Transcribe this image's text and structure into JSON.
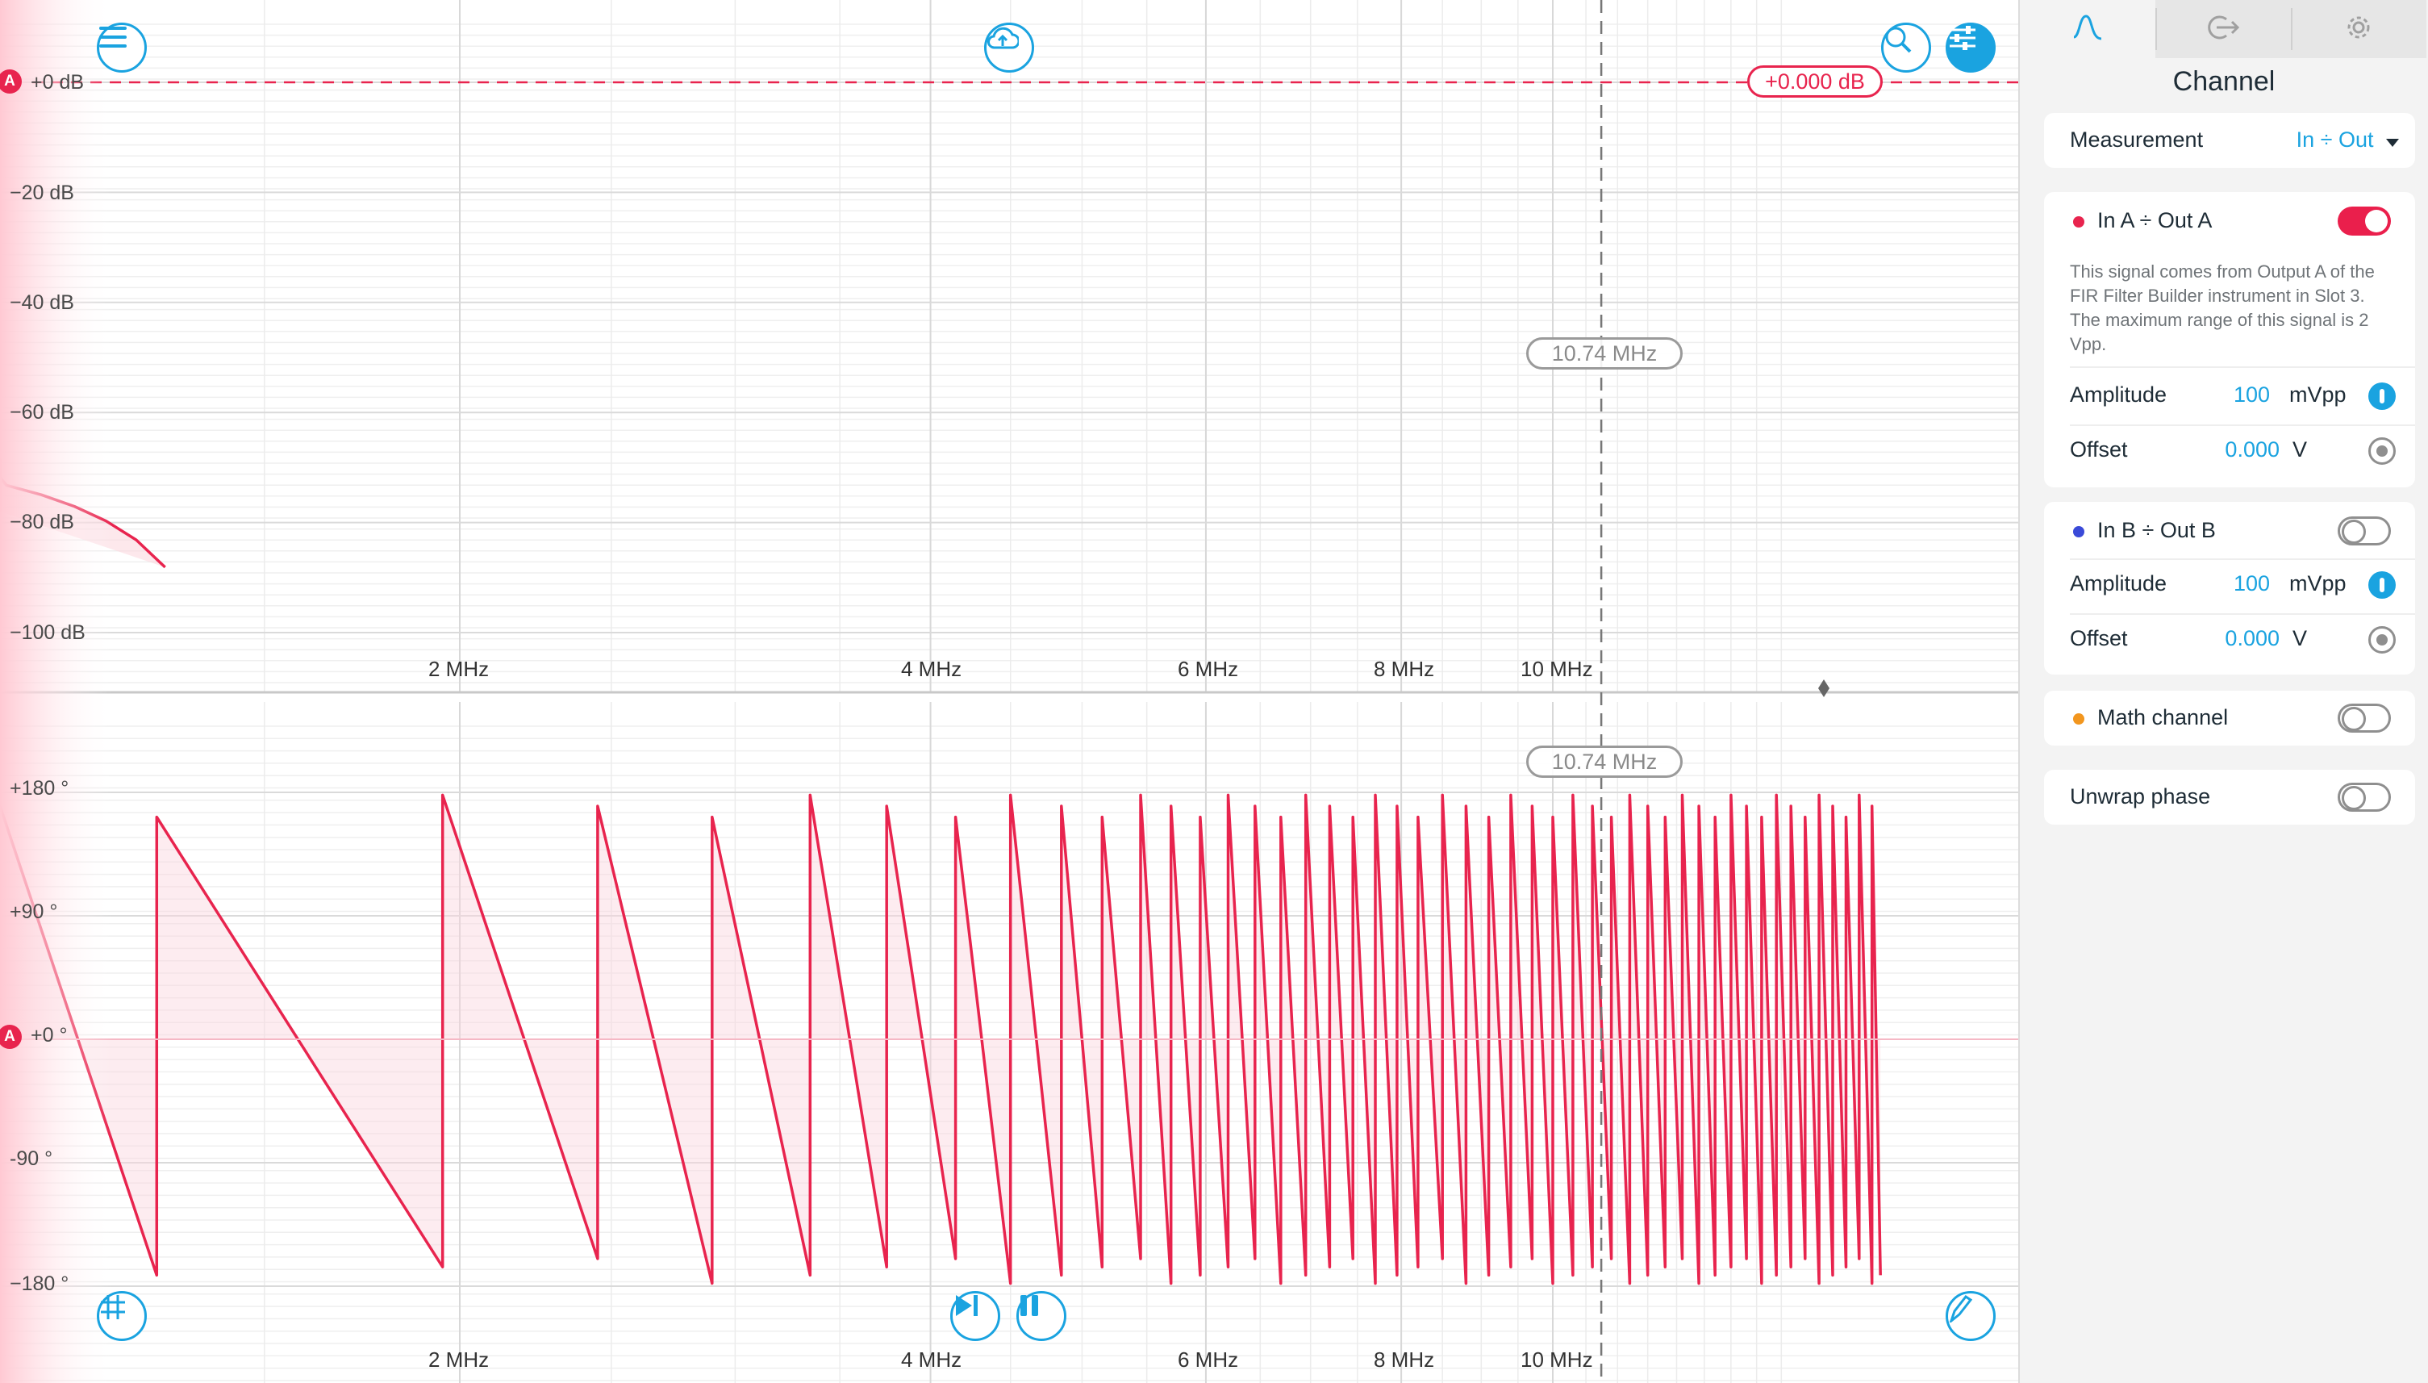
{
  "plot": {
    "mag_axis": {
      "labels": [
        "+0 dB",
        "−20 dB",
        "−40 dB",
        "−60 dB",
        "−80 dB",
        "−100 dB"
      ],
      "values_db": [
        0,
        -20,
        -40,
        -60,
        -80,
        -100
      ]
    },
    "phase_axis": {
      "labels": [
        "+180 °",
        "+90 °",
        "+0 °",
        "-90 °",
        "−180 °"
      ],
      "values_deg": [
        180,
        90,
        0,
        -90,
        -180
      ]
    },
    "freq_labels": [
      "2 MHz",
      "4 MHz",
      "6 MHz",
      "8 MHz",
      "10 MHz"
    ],
    "freq_values_mhz": [
      2,
      4,
      6,
      8,
      10
    ],
    "cursor": {
      "frequency_label": "10.74 MHz",
      "frequency_mhz": 10.74,
      "gain_readout": "+0.000 dB"
    },
    "channel_marker": "A",
    "trace_color": "#e8244e",
    "accent_color": "#1aa3e0"
  },
  "toolbar": {
    "menu_icon": "hamburger-menu-icon",
    "cloud_icon": "cloud-upload-icon",
    "zoom_icon": "zoom-icon",
    "settings_icon": "sliders-icon",
    "grid_icon": "grid-icon",
    "step_icon": "step-forward-icon",
    "pause_icon": "pause-icon",
    "probe_icon": "probe-icon"
  },
  "panel": {
    "tabs": [
      "waveform-tab-icon",
      "output-tab-icon",
      "gear-tab-icon"
    ],
    "title": "Channel",
    "measurement": {
      "label": "Measurement",
      "value": "In ÷ Out"
    },
    "channel_a": {
      "name": "In A ÷ Out A",
      "enabled": true,
      "dot_color": "#e8244e",
      "description": "This signal comes from Output A of the FIR Filter Builder instrument in Slot 3. The maximum range of this signal is 2 Vpp.",
      "amplitude_label": "Amplitude",
      "amplitude_value": "100",
      "amplitude_unit": "mVpp",
      "offset_label": "Offset",
      "offset_value": "0.000",
      "offset_unit": "V"
    },
    "channel_b": {
      "name": "In B ÷ Out B",
      "enabled": false,
      "dot_color": "#3a4ad8",
      "amplitude_label": "Amplitude",
      "amplitude_value": "100",
      "amplitude_unit": "mVpp",
      "offset_label": "Offset",
      "offset_value": "0.000",
      "offset_unit": "V"
    },
    "math_channel": {
      "name": "Math channel",
      "enabled": false,
      "dot_color": "#f2961e"
    },
    "unwrap_phase": {
      "name": "Unwrap phase",
      "enabled": false
    }
  }
}
